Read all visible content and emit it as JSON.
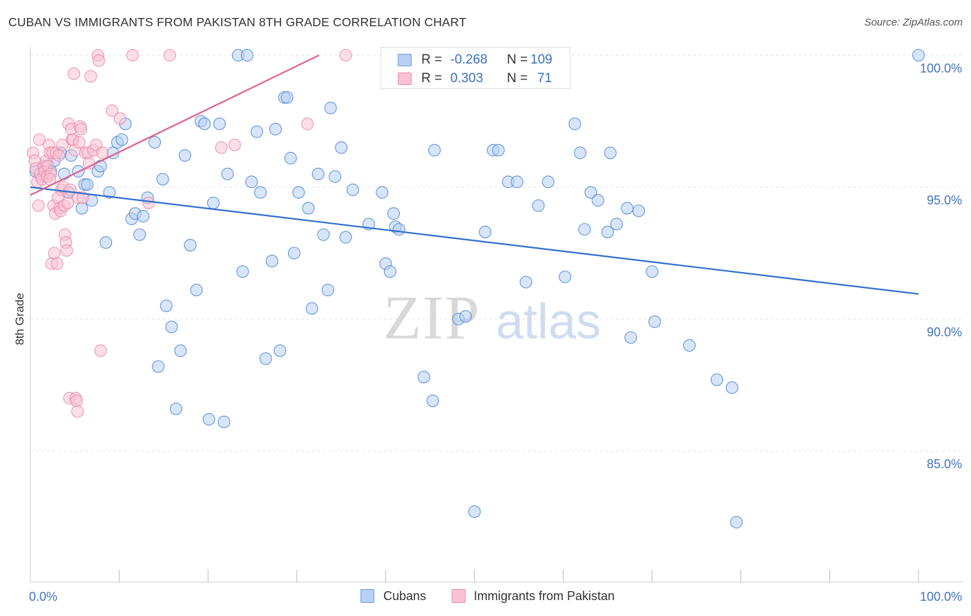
{
  "title": "CUBAN VS IMMIGRANTS FROM PAKISTAN 8TH GRADE CORRELATION CHART",
  "source": "Source: ZipAtlas.com",
  "watermark": {
    "part1": "ZIP",
    "part2": "atlas"
  },
  "stats": [
    {
      "r_label": "R =",
      "r_value": "-0.268",
      "n_label": "N =",
      "n_value": "109",
      "fill": "#b8d0f4",
      "stroke": "#6b9bdc"
    },
    {
      "r_label": "R =",
      "r_value": "0.303",
      "n_label": "N =",
      "n_value": "71",
      "fill": "#f9c3d4",
      "stroke": "#e888a8"
    }
  ],
  "legend": [
    {
      "label": "Cubans",
      "fill": "#b8d0f4",
      "stroke": "#6b9bdc"
    },
    {
      "label": "Immigrants from Pakistan",
      "fill": "#f9c3d4",
      "stroke": "#e888a8"
    }
  ],
  "chart_data": {
    "type": "scatter",
    "ylabel": "8th Grade",
    "xlim": [
      0,
      100
    ],
    "ylim": [
      80.5,
      100.8
    ],
    "x_tick_labels": [
      {
        "value": 0,
        "label": "0.0%"
      },
      {
        "value": 100,
        "label": "100.0%"
      }
    ],
    "y_tick_labels": [
      {
        "value": 100,
        "label": "100.0%"
      },
      {
        "value": 95,
        "label": "95.0%"
      },
      {
        "value": 90,
        "label": "90.0%"
      },
      {
        "value": 85,
        "label": "85.0%"
      }
    ],
    "x_minor_ticks": [
      10,
      20,
      30,
      40,
      50,
      60,
      70,
      80,
      90,
      100
    ],
    "grid": true,
    "colors": {
      "cubans": "#4a86d8",
      "cubans_fill": "#b8d0f4",
      "cubans_line": "#2f6fcf",
      "pakistan": "#e888a8",
      "pakistan_fill": "#f9c3d4",
      "pakistan_line": "#e06090"
    },
    "series": [
      {
        "name": "Cubans",
        "trend": {
          "x0": 0,
          "y0": 95.0,
          "x1": 100,
          "y1": 90.95
        },
        "points": [
          [
            0.6,
            95.6
          ],
          [
            1.2,
            95.4
          ],
          [
            1.8,
            95.8
          ],
          [
            2.3,
            95.6
          ],
          [
            2.7,
            96.0
          ],
          [
            3.4,
            96.3
          ],
          [
            3.8,
            95.5
          ],
          [
            4.3,
            94.8
          ],
          [
            4.6,
            96.2
          ],
          [
            5.4,
            95.6
          ],
          [
            5.8,
            94.2
          ],
          [
            6.1,
            95.1
          ],
          [
            6.4,
            95.1
          ],
          [
            6.9,
            94.5
          ],
          [
            7.6,
            95.6
          ],
          [
            7.9,
            95.8
          ],
          [
            8.5,
            92.9
          ],
          [
            8.9,
            94.8
          ],
          [
            9.3,
            96.3
          ],
          [
            9.8,
            96.7
          ],
          [
            10.3,
            96.8
          ],
          [
            10.7,
            97.4
          ],
          [
            11.4,
            93.8
          ],
          [
            11.8,
            94.0
          ],
          [
            12.3,
            93.2
          ],
          [
            12.7,
            93.9
          ],
          [
            13.2,
            94.6
          ],
          [
            14.0,
            96.7
          ],
          [
            14.4,
            88.2
          ],
          [
            14.9,
            95.3
          ],
          [
            15.3,
            90.5
          ],
          [
            15.9,
            89.7
          ],
          [
            16.4,
            86.6
          ],
          [
            16.9,
            88.8
          ],
          [
            17.4,
            96.2
          ],
          [
            18.0,
            92.8
          ],
          [
            18.7,
            91.1
          ],
          [
            19.2,
            97.5
          ],
          [
            19.6,
            97.4
          ],
          [
            20.1,
            86.2
          ],
          [
            20.6,
            94.4
          ],
          [
            21.3,
            97.4
          ],
          [
            21.8,
            86.1
          ],
          [
            22.2,
            95.5
          ],
          [
            23.4,
            100.0
          ],
          [
            23.9,
            91.8
          ],
          [
            24.4,
            100.0
          ],
          [
            24.9,
            95.2
          ],
          [
            25.5,
            97.1
          ],
          [
            25.9,
            94.8
          ],
          [
            26.5,
            88.5
          ],
          [
            27.2,
            92.2
          ],
          [
            27.6,
            97.2
          ],
          [
            28.1,
            88.8
          ],
          [
            28.6,
            98.4
          ],
          [
            28.9,
            98.4
          ],
          [
            29.3,
            96.1
          ],
          [
            29.7,
            92.5
          ],
          [
            30.2,
            94.8
          ],
          [
            31.3,
            94.2
          ],
          [
            31.7,
            90.4
          ],
          [
            32.4,
            95.5
          ],
          [
            33.0,
            93.2
          ],
          [
            33.5,
            91.1
          ],
          [
            33.8,
            98.0
          ],
          [
            34.3,
            95.4
          ],
          [
            35.0,
            96.5
          ],
          [
            35.5,
            93.1
          ],
          [
            36.3,
            94.9
          ],
          [
            38.1,
            93.6
          ],
          [
            39.6,
            94.8
          ],
          [
            40.0,
            92.1
          ],
          [
            40.5,
            91.8
          ],
          [
            40.9,
            94.0
          ],
          [
            41.1,
            93.5
          ],
          [
            41.5,
            93.4
          ],
          [
            44.3,
            87.8
          ],
          [
            45.3,
            86.9
          ],
          [
            45.5,
            96.4
          ],
          [
            48.2,
            90.0
          ],
          [
            49.0,
            90.1
          ],
          [
            50.0,
            82.7
          ],
          [
            51.2,
            93.3
          ],
          [
            52.1,
            96.4
          ],
          [
            52.7,
            96.4
          ],
          [
            53.8,
            95.2
          ],
          [
            54.8,
            95.2
          ],
          [
            55.8,
            91.4
          ],
          [
            57.2,
            94.3
          ],
          [
            58.3,
            95.2
          ],
          [
            60.2,
            91.6
          ],
          [
            61.3,
            97.4
          ],
          [
            61.9,
            96.3
          ],
          [
            62.4,
            93.4
          ],
          [
            63.1,
            94.8
          ],
          [
            63.9,
            94.5
          ],
          [
            65.0,
            93.3
          ],
          [
            65.3,
            96.3
          ],
          [
            66.0,
            93.6
          ],
          [
            67.2,
            94.2
          ],
          [
            67.6,
            89.3
          ],
          [
            68.5,
            94.1
          ],
          [
            70.0,
            91.8
          ],
          [
            70.3,
            89.9
          ],
          [
            74.2,
            89.0
          ],
          [
            77.3,
            87.7
          ],
          [
            79.0,
            87.4
          ],
          [
            79.5,
            82.3
          ],
          [
            100.0,
            100.0
          ]
        ]
      },
      {
        "name": "Immigrants from Pakistan",
        "trend": {
          "x0": 0,
          "y0": 94.7,
          "x1": 32.5,
          "y1": 100.0
        },
        "points": [
          [
            0.3,
            96.3
          ],
          [
            0.5,
            96.0
          ],
          [
            0.6,
            95.7
          ],
          [
            0.8,
            95.2
          ],
          [
            0.9,
            94.3
          ],
          [
            1.0,
            96.8
          ],
          [
            1.1,
            95.5
          ],
          [
            1.3,
            95.3
          ],
          [
            1.5,
            95.8
          ],
          [
            1.6,
            95.6
          ],
          [
            1.8,
            96.0
          ],
          [
            1.9,
            95.4
          ],
          [
            2.0,
            95.8
          ],
          [
            2.1,
            96.6
          ],
          [
            2.2,
            96.3
          ],
          [
            2.3,
            95.5
          ],
          [
            2.4,
            92.1
          ],
          [
            2.5,
            96.3
          ],
          [
            2.6,
            94.3
          ],
          [
            2.7,
            92.5
          ],
          [
            2.8,
            94.0
          ],
          [
            2.9,
            96.3
          ],
          [
            3.0,
            92.1
          ],
          [
            3.1,
            94.6
          ],
          [
            3.2,
            96.2
          ],
          [
            3.3,
            94.2
          ],
          [
            3.4,
            94.1
          ],
          [
            3.5,
            94.9
          ],
          [
            3.6,
            96.6
          ],
          [
            3.7,
            95.0
          ],
          [
            3.8,
            94.3
          ],
          [
            3.9,
            93.2
          ],
          [
            4.0,
            92.9
          ],
          [
            4.1,
            92.6
          ],
          [
            4.2,
            94.4
          ],
          [
            4.3,
            97.4
          ],
          [
            4.4,
            87.0
          ],
          [
            4.5,
            94.9
          ],
          [
            4.6,
            97.2
          ],
          [
            4.7,
            96.8
          ],
          [
            4.8,
            96.8
          ],
          [
            4.9,
            99.3
          ],
          [
            5.0,
            96.4
          ],
          [
            5.1,
            87.0
          ],
          [
            5.2,
            86.9
          ],
          [
            5.3,
            86.5
          ],
          [
            5.4,
            94.6
          ],
          [
            5.5,
            96.7
          ],
          [
            5.6,
            97.3
          ],
          [
            5.7,
            97.2
          ],
          [
            5.9,
            94.6
          ],
          [
            6.2,
            96.3
          ],
          [
            6.5,
            96.3
          ],
          [
            6.6,
            95.9
          ],
          [
            6.8,
            99.2
          ],
          [
            7.1,
            96.4
          ],
          [
            7.4,
            96.6
          ],
          [
            7.6,
            100.0
          ],
          [
            7.7,
            99.8
          ],
          [
            7.9,
            88.8
          ],
          [
            8.1,
            96.3
          ],
          [
            9.2,
            97.9
          ],
          [
            10.1,
            97.6
          ],
          [
            11.5,
            100.0
          ],
          [
            13.3,
            94.4
          ],
          [
            15.7,
            100.0
          ],
          [
            21.5,
            96.5
          ],
          [
            23.0,
            96.6
          ],
          [
            31.2,
            97.4
          ],
          [
            35.5,
            100.0
          ],
          [
            2.2,
            95.3
          ]
        ]
      }
    ]
  }
}
